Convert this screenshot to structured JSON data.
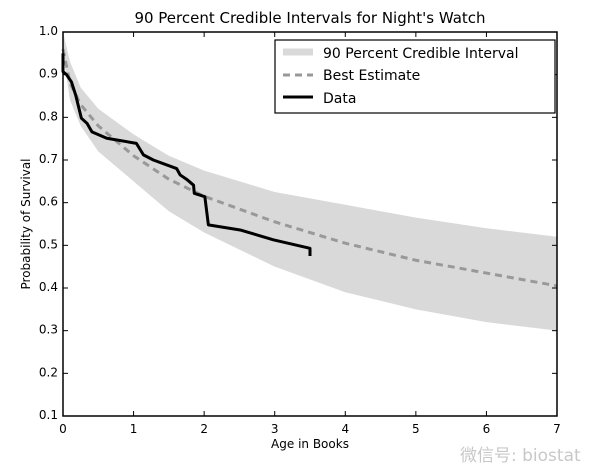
{
  "chart_data": {
    "type": "line",
    "title": "90 Percent Credible Intervals for Night's Watch",
    "xlabel": "Age in Books",
    "ylabel": "Probability of Survival",
    "xlim": [
      0,
      7
    ],
    "ylim": [
      0.1,
      1.0
    ],
    "xticks": [
      "0",
      "1",
      "2",
      "3",
      "4",
      "5",
      "6",
      "7"
    ],
    "yticks": [
      "0.1",
      "0.2",
      "0.3",
      "0.4",
      "0.5",
      "0.6",
      "0.7",
      "0.8",
      "0.9",
      "1.0"
    ],
    "grid": false,
    "legend_position": "top-right",
    "band": {
      "name": "90 Percent Credible Interval",
      "color": "#d9d9d9",
      "x": [
        0,
        0.1,
        0.25,
        0.5,
        1,
        1.5,
        2,
        3,
        4,
        5,
        6,
        7
      ],
      "upper": [
        1.0,
        0.93,
        0.87,
        0.82,
        0.76,
        0.71,
        0.675,
        0.625,
        0.595,
        0.565,
        0.54,
        0.52
      ],
      "lower": [
        0.95,
        0.84,
        0.78,
        0.72,
        0.65,
        0.58,
        0.53,
        0.45,
        0.39,
        0.35,
        0.32,
        0.3
      ]
    },
    "series": [
      {
        "name": "Best Estimate",
        "color": "#999999",
        "style": "dashed",
        "x": [
          0,
          0.1,
          0.25,
          0.5,
          1,
          1.5,
          2,
          3,
          4,
          5,
          6,
          7
        ],
        "y": [
          0.96,
          0.88,
          0.83,
          0.78,
          0.71,
          0.655,
          0.615,
          0.555,
          0.505,
          0.465,
          0.435,
          0.405
        ]
      },
      {
        "name": "Data",
        "color": "#000000",
        "style": "solid",
        "x": [
          0,
          0,
          0.05,
          0.12,
          0.18,
          0.22,
          0.26,
          0.34,
          0.41,
          0.62,
          1.04,
          1.14,
          1.28,
          1.61,
          1.66,
          1.75,
          1.85,
          1.86,
          2.01,
          2.06,
          2.51,
          2.98,
          3.5,
          3.5
        ],
        "y": [
          0.95,
          0.907,
          0.9,
          0.883,
          0.852,
          0.825,
          0.798,
          0.786,
          0.766,
          0.751,
          0.739,
          0.712,
          0.7,
          0.68,
          0.665,
          0.655,
          0.641,
          0.622,
          0.614,
          0.548,
          0.536,
          0.513,
          0.493,
          0.475
        ]
      }
    ]
  },
  "watermark": "微信号: biostat"
}
